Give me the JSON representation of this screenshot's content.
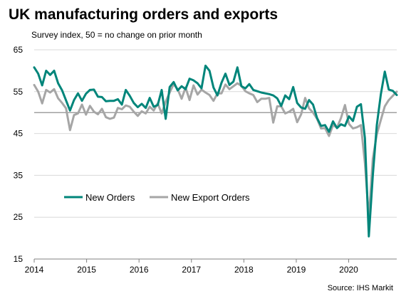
{
  "chart_data": {
    "type": "line",
    "title": "UK manufacturing orders and exports",
    "subtitle": "Survey index, 50 = no change on prior month",
    "ylim": [
      15,
      65
    ],
    "yticks": [
      15,
      25,
      35,
      45,
      55,
      65
    ],
    "xlim": [
      2014.0,
      2020.917
    ],
    "xticks": [
      "2014",
      "2015",
      "2016",
      "2017",
      "2018",
      "2019",
      "2020"
    ],
    "reference_line": 50,
    "grid": true,
    "legend_position": "lower-left",
    "source": "Source: IHS Markit",
    "x": [
      2014.0,
      2014.083,
      2014.167,
      2014.25,
      2014.333,
      2014.417,
      2014.5,
      2014.583,
      2014.667,
      2014.75,
      2014.833,
      2014.917,
      2015.0,
      2015.083,
      2015.167,
      2015.25,
      2015.333,
      2015.417,
      2015.5,
      2015.583,
      2015.667,
      2015.75,
      2015.833,
      2015.917,
      2016.0,
      2016.083,
      2016.167,
      2016.25,
      2016.333,
      2016.417,
      2016.5,
      2016.583,
      2016.667,
      2016.75,
      2016.833,
      2016.917,
      2017.0,
      2017.083,
      2017.167,
      2017.25,
      2017.333,
      2017.417,
      2017.5,
      2017.583,
      2017.667,
      2017.75,
      2017.833,
      2017.917,
      2018.0,
      2018.083,
      2018.167,
      2018.25,
      2018.333,
      2018.417,
      2018.5,
      2018.583,
      2018.667,
      2018.75,
      2018.833,
      2018.917,
      2019.0,
      2019.083,
      2019.167,
      2019.25,
      2019.333,
      2019.417,
      2019.5,
      2019.583,
      2019.667,
      2019.75,
      2019.833,
      2019.917,
      2020.0,
      2020.083,
      2020.167,
      2020.25,
      2020.333,
      2020.417,
      2020.5,
      2020.583,
      2020.667,
      2020.75,
      2020.833,
      2020.917
    ],
    "series": [
      {
        "name": "New Orders",
        "color": "#00857A",
        "values": [
          60.8,
          59.3,
          56.5,
          60.0,
          59.0,
          60.0,
          57.0,
          55.3,
          52.9,
          50.5,
          53.0,
          54.6,
          52.8,
          54.5,
          55.4,
          55.5,
          53.8,
          53.7,
          52.7,
          52.8,
          52.8,
          53.2,
          51.9,
          55.4,
          54.0,
          52.3,
          51.3,
          52.1,
          51.1,
          53.5,
          51.4,
          51.8,
          55.4,
          48.5,
          56.1,
          57.3,
          55.3,
          56.3,
          55.6,
          58.1,
          57.7,
          57.0,
          55.8,
          61.2,
          60.0,
          56.0,
          54.1,
          57.1,
          59.3,
          56.6,
          57.4,
          60.8,
          56.3,
          55.8,
          56.8,
          55.4,
          55.1,
          54.8,
          54.6,
          54.4,
          54.1,
          53.4,
          51.6,
          54.1,
          53.2,
          56.1,
          52.3,
          51.2,
          50.9,
          53.0,
          51.9,
          48.7,
          46.8,
          47.0,
          45.4,
          47.9,
          46.3,
          47.2,
          46.8,
          49.1,
          48.0,
          51.4,
          52.0,
          43.9
        ],
        "values_tail": [
          20.4,
          35.0,
          47.0,
          54.3,
          59.8,
          55.5,
          55.2,
          54.2
        ]
      },
      {
        "name": "New Export Orders",
        "color": "#A6A6A6",
        "values": [
          56.6,
          55.0,
          52.2,
          55.4,
          54.8,
          55.6,
          53.4,
          52.3,
          51.0,
          45.8,
          49.4,
          49.8,
          51.9,
          49.5,
          51.6,
          50.2,
          49.6,
          50.9,
          48.9,
          48.5,
          48.8,
          51.1,
          50.8,
          51.7,
          51.4,
          50.2,
          49.2,
          50.3,
          49.8,
          51.4,
          50.5,
          52.2,
          49.8,
          52.6,
          54.8,
          56.8,
          55.6,
          53.3,
          56.0,
          53.0,
          56.5,
          54.3,
          55.5,
          54.8,
          54.2,
          52.8,
          54.6,
          54.6,
          56.7,
          55.6,
          56.3,
          57.0,
          56.4,
          55.1,
          54.6,
          54.2,
          52.5,
          53.3,
          53.3,
          53.5,
          47.6,
          51.5,
          51.5,
          49.8,
          50.2,
          50.9,
          47.7,
          49.6,
          53.5,
          51.0,
          50.0,
          48.5,
          46.2,
          46.3,
          44.4,
          47.0,
          46.4,
          48.7,
          51.8,
          47.3,
          46.2,
          46.5,
          47.0,
          37.9
        ],
        "values_tail": [
          24.9,
          39.0,
          44.8,
          48.2,
          51.5,
          53.0,
          54.0,
          55.0
        ]
      }
    ]
  }
}
